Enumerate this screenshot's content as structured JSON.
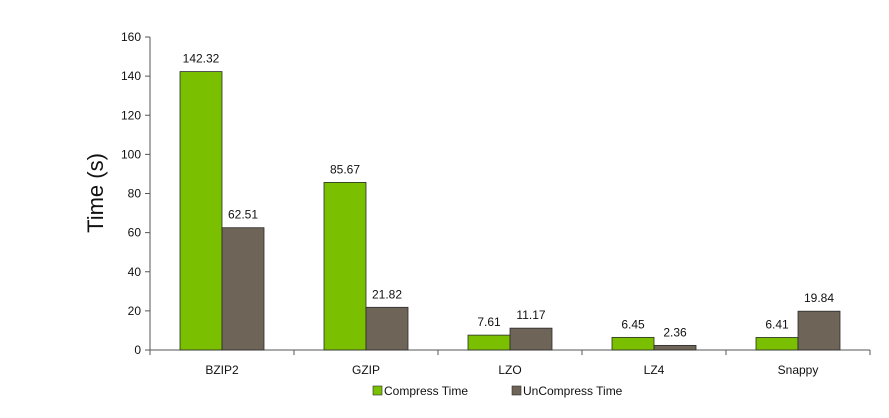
{
  "chart_data": {
    "type": "bar",
    "title": "",
    "xlabel": "",
    "ylabel": "Time (s)",
    "ylim": [
      0,
      160
    ],
    "yticks": [
      0,
      20,
      40,
      60,
      80,
      100,
      120,
      140,
      160
    ],
    "categories": [
      "BZIP2",
      "GZIP",
      "LZO",
      "LZ4",
      "Snappy"
    ],
    "series": [
      {
        "name": "Compress Time",
        "color": "#7ac000",
        "values": [
          142.32,
          85.67,
          7.61,
          6.45,
          6.41
        ],
        "labels": [
          "142.32",
          "85.67",
          "7.61",
          "6.45",
          "6.41"
        ]
      },
      {
        "name": "UnCompress Time",
        "color": "#6e6458",
        "values": [
          62.51,
          21.82,
          11.17,
          2.36,
          19.84
        ],
        "labels": [
          "62.51",
          "21.82",
          "11.17",
          "2.36",
          "19.84"
        ]
      }
    ],
    "grid": false,
    "legend_position": "bottom-center"
  }
}
